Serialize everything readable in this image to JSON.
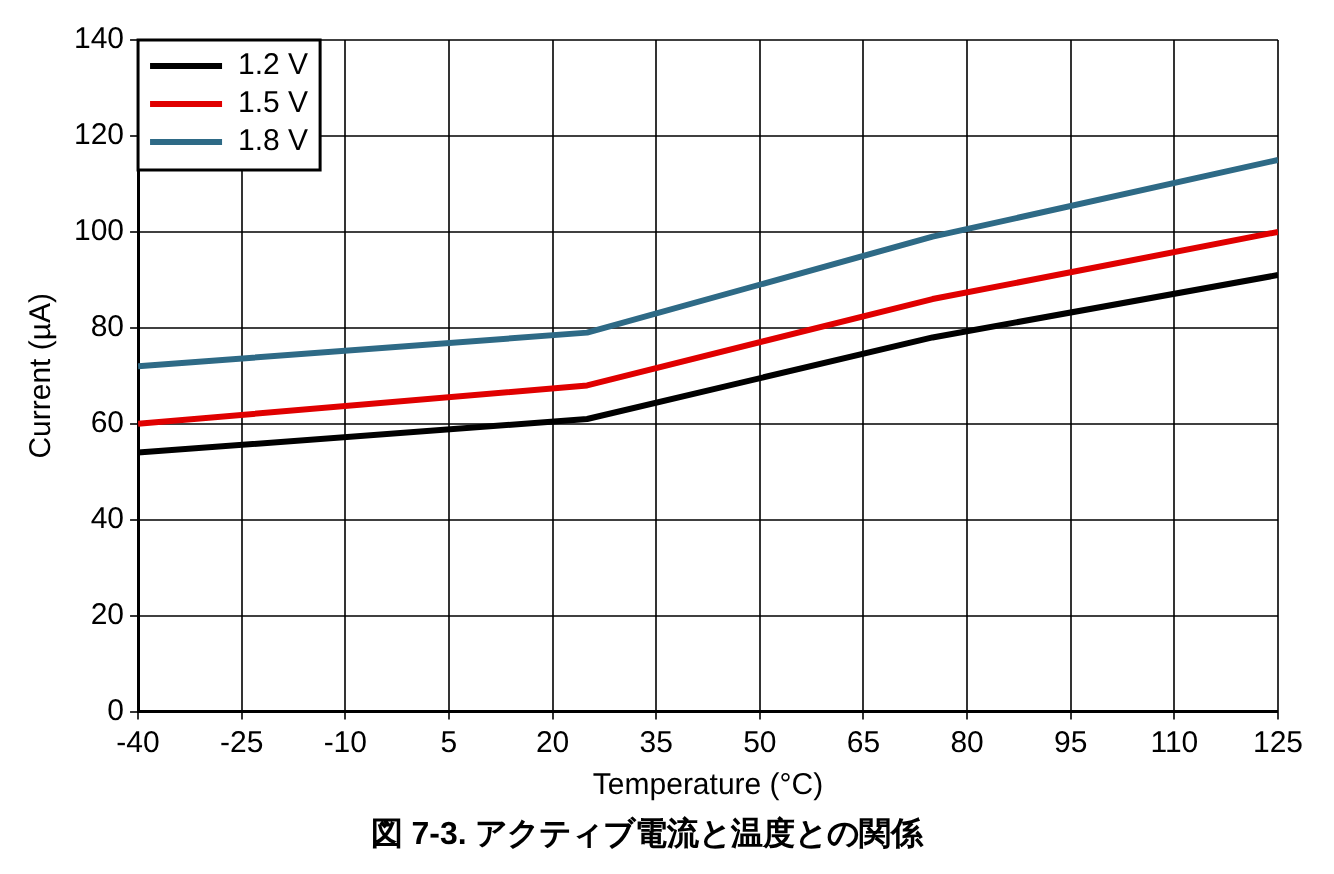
{
  "chart_data": {
    "type": "line",
    "title": "図 7-3. アクティブ電流と温度との関係",
    "xlabel": "Temperature (°C)",
    "ylabel": "Current (µA)",
    "xlim": [
      -40,
      125
    ],
    "xticks": [
      -40,
      -25,
      -10,
      5,
      20,
      35,
      50,
      65,
      80,
      95,
      110,
      125
    ],
    "ylim": [
      0,
      140
    ],
    "yticks": [
      0,
      20,
      40,
      60,
      80,
      100,
      120,
      140
    ],
    "grid": true,
    "legend": "top left",
    "marker": "none",
    "line_style": "solid",
    "x": [
      -40,
      25,
      75,
      125
    ],
    "series": [
      {
        "name": "1.2 V",
        "color": "#000000",
        "values": [
          54,
          61,
          78,
          91
        ]
      },
      {
        "name": "1.5 V",
        "color": "#e00000",
        "values": [
          60,
          68,
          86,
          100
        ]
      },
      {
        "name": "1.8 V",
        "color": "#2e6a86",
        "values": [
          72,
          79,
          99,
          115
        ]
      }
    ]
  }
}
